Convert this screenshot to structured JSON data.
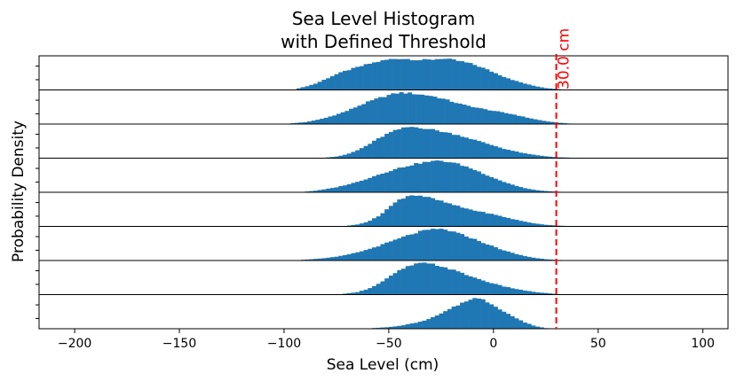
{
  "chart_data": {
    "type": "bar",
    "subtype": "stacked-histogram-panels",
    "title_lines": [
      "Sea Level Histogram",
      "with Defined Threshold"
    ],
    "xlabel": "Sea Level (cm)",
    "ylabel": "Probability Density",
    "xlim": [
      -217,
      112
    ],
    "xticks": [
      -200,
      -150,
      -100,
      -50,
      0,
      50,
      100
    ],
    "bin_width": 2,
    "bar_color": "#1f77b4",
    "grid": false,
    "threshold": {
      "value": 30.0,
      "label": "30.0 cm",
      "color": "#ff0000",
      "linestyle": "dashed"
    },
    "series": [
      {
        "values": [
          [
            -94,
            0.04
          ],
          [
            -90,
            0.1
          ],
          [
            -85,
            0.2
          ],
          [
            -80,
            0.35
          ],
          [
            -75,
            0.5
          ],
          [
            -70,
            0.62
          ],
          [
            -65,
            0.72
          ],
          [
            -60,
            0.82
          ],
          [
            -55,
            0.9
          ],
          [
            -50,
            0.97
          ],
          [
            -45,
            1.0
          ],
          [
            -40,
            0.98
          ],
          [
            -35,
            0.95
          ],
          [
            -30,
            0.96
          ],
          [
            -25,
            1.0
          ],
          [
            -20,
            0.96
          ],
          [
            -15,
            0.9
          ],
          [
            -10,
            0.82
          ],
          [
            -5,
            0.7
          ],
          [
            0,
            0.56
          ],
          [
            5,
            0.42
          ],
          [
            10,
            0.3
          ],
          [
            15,
            0.2
          ],
          [
            20,
            0.12
          ],
          [
            25,
            0.06
          ],
          [
            30,
            0.03
          ],
          [
            34,
            0.01
          ]
        ]
      },
      {
        "values": [
          [
            -97,
            0.02
          ],
          [
            -90,
            0.06
          ],
          [
            -85,
            0.12
          ],
          [
            -80,
            0.2
          ],
          [
            -75,
            0.3
          ],
          [
            -70,
            0.42
          ],
          [
            -65,
            0.56
          ],
          [
            -60,
            0.7
          ],
          [
            -55,
            0.82
          ],
          [
            -50,
            0.92
          ],
          [
            -45,
            1.0
          ],
          [
            -40,
            0.98
          ],
          [
            -35,
            0.94
          ],
          [
            -30,
            0.9
          ],
          [
            -25,
            0.82
          ],
          [
            -20,
            0.72
          ],
          [
            -15,
            0.62
          ],
          [
            -10,
            0.55
          ],
          [
            -5,
            0.48
          ],
          [
            0,
            0.42
          ],
          [
            5,
            0.36
          ],
          [
            10,
            0.3
          ],
          [
            15,
            0.22
          ],
          [
            20,
            0.15
          ],
          [
            25,
            0.09
          ],
          [
            30,
            0.05
          ],
          [
            35,
            0.02
          ],
          [
            38,
            0.01
          ]
        ]
      },
      {
        "values": [
          [
            -80,
            0.02
          ],
          [
            -75,
            0.05
          ],
          [
            -70,
            0.12
          ],
          [
            -65,
            0.25
          ],
          [
            -60,
            0.42
          ],
          [
            -55,
            0.62
          ],
          [
            -50,
            0.8
          ],
          [
            -45,
            0.92
          ],
          [
            -40,
            1.0
          ],
          [
            -35,
            0.97
          ],
          [
            -30,
            0.92
          ],
          [
            -25,
            0.85
          ],
          [
            -20,
            0.78
          ],
          [
            -15,
            0.7
          ],
          [
            -10,
            0.6
          ],
          [
            -5,
            0.5
          ],
          [
            0,
            0.4
          ],
          [
            5,
            0.3
          ],
          [
            10,
            0.22
          ],
          [
            15,
            0.15
          ],
          [
            20,
            0.1
          ],
          [
            25,
            0.06
          ],
          [
            30,
            0.03
          ],
          [
            35,
            0.02
          ],
          [
            38,
            0.01
          ]
        ]
      },
      {
        "values": [
          [
            -90,
            0.02
          ],
          [
            -85,
            0.05
          ],
          [
            -80,
            0.1
          ],
          [
            -75,
            0.16
          ],
          [
            -70,
            0.24
          ],
          [
            -65,
            0.33
          ],
          [
            -60,
            0.44
          ],
          [
            -55,
            0.56
          ],
          [
            -50,
            0.67
          ],
          [
            -45,
            0.77
          ],
          [
            -40,
            0.86
          ],
          [
            -35,
            0.93
          ],
          [
            -30,
            0.98
          ],
          [
            -25,
            1.0
          ],
          [
            -20,
            0.95
          ],
          [
            -15,
            0.86
          ],
          [
            -10,
            0.74
          ],
          [
            -5,
            0.6
          ],
          [
            0,
            0.46
          ],
          [
            5,
            0.33
          ],
          [
            10,
            0.22
          ],
          [
            15,
            0.13
          ],
          [
            20,
            0.07
          ],
          [
            25,
            0.04
          ],
          [
            30,
            0.02
          ],
          [
            35,
            0.01
          ]
        ]
      },
      {
        "values": [
          [
            -70,
            0.02
          ],
          [
            -65,
            0.06
          ],
          [
            -60,
            0.15
          ],
          [
            -55,
            0.32
          ],
          [
            -50,
            0.6
          ],
          [
            -45,
            0.85
          ],
          [
            -40,
            1.0
          ],
          [
            -35,
            0.98
          ],
          [
            -30,
            0.9
          ],
          [
            -25,
            0.8
          ],
          [
            -20,
            0.7
          ],
          [
            -15,
            0.6
          ],
          [
            -10,
            0.52
          ],
          [
            -5,
            0.45
          ],
          [
            0,
            0.38
          ],
          [
            5,
            0.3
          ],
          [
            10,
            0.22
          ],
          [
            15,
            0.15
          ],
          [
            20,
            0.09
          ],
          [
            25,
            0.05
          ],
          [
            30,
            0.03
          ],
          [
            35,
            0.01
          ]
        ]
      },
      {
        "values": [
          [
            -92,
            0.02
          ],
          [
            -85,
            0.05
          ],
          [
            -80,
            0.08
          ],
          [
            -75,
            0.12
          ],
          [
            -70,
            0.18
          ],
          [
            -65,
            0.26
          ],
          [
            -60,
            0.35
          ],
          [
            -55,
            0.46
          ],
          [
            -50,
            0.58
          ],
          [
            -45,
            0.7
          ],
          [
            -40,
            0.82
          ],
          [
            -35,
            0.92
          ],
          [
            -30,
            0.98
          ],
          [
            -25,
            1.0
          ],
          [
            -20,
            0.93
          ],
          [
            -15,
            0.82
          ],
          [
            -10,
            0.7
          ],
          [
            -5,
            0.57
          ],
          [
            0,
            0.44
          ],
          [
            5,
            0.32
          ],
          [
            10,
            0.22
          ],
          [
            15,
            0.14
          ],
          [
            20,
            0.08
          ],
          [
            25,
            0.04
          ],
          [
            30,
            0.02
          ],
          [
            34,
            0.01
          ]
        ]
      },
      {
        "values": [
          [
            -72,
            0.02
          ],
          [
            -65,
            0.08
          ],
          [
            -60,
            0.18
          ],
          [
            -55,
            0.34
          ],
          [
            -50,
            0.55
          ],
          [
            -45,
            0.76
          ],
          [
            -40,
            0.92
          ],
          [
            -35,
            1.0
          ],
          [
            -30,
            0.98
          ],
          [
            -25,
            0.9
          ],
          [
            -20,
            0.8
          ],
          [
            -15,
            0.68
          ],
          [
            -10,
            0.56
          ],
          [
            -5,
            0.45
          ],
          [
            0,
            0.35
          ],
          [
            5,
            0.26
          ],
          [
            10,
            0.19
          ],
          [
            15,
            0.13
          ],
          [
            20,
            0.08
          ],
          [
            25,
            0.05
          ],
          [
            30,
            0.02
          ],
          [
            34,
            0.01
          ]
        ]
      },
      {
        "values": [
          [
            -58,
            0.02
          ],
          [
            -50,
            0.05
          ],
          [
            -45,
            0.09
          ],
          [
            -40,
            0.15
          ],
          [
            -35,
            0.22
          ],
          [
            -30,
            0.33
          ],
          [
            -25,
            0.48
          ],
          [
            -20,
            0.65
          ],
          [
            -15,
            0.82
          ],
          [
            -10,
            0.98
          ],
          [
            -5,
            0.92
          ],
          [
            0,
            0.75
          ],
          [
            5,
            0.55
          ],
          [
            10,
            0.36
          ],
          [
            15,
            0.2
          ],
          [
            20,
            0.08
          ],
          [
            25,
            0.02
          ],
          [
            29,
            0.01
          ]
        ]
      }
    ]
  }
}
